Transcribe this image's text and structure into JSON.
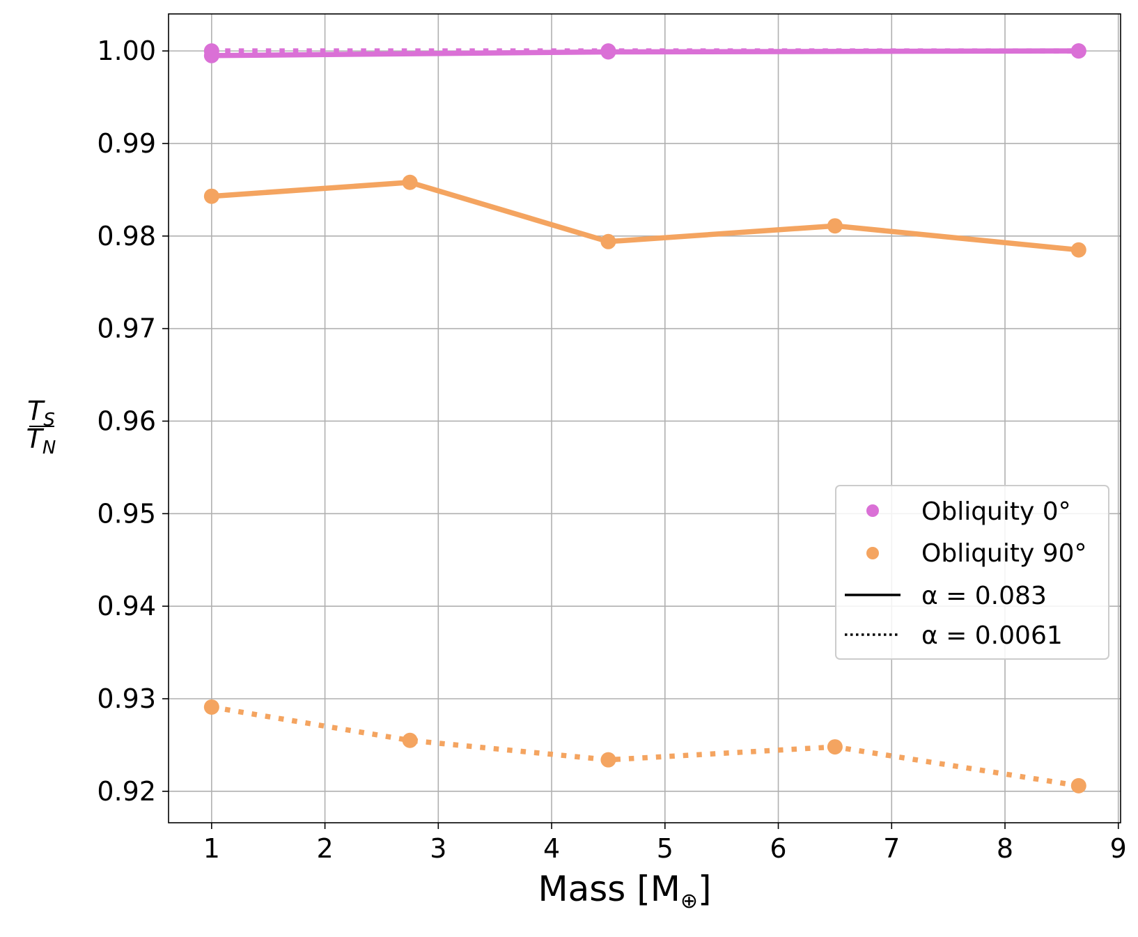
{
  "chart_data": {
    "type": "line",
    "xlabel": "Mass [M",
    "xlabel_symbol": "⊕",
    "xlabel_close": "]",
    "ylabel": {
      "num": "T",
      "num_sub": "S",
      "den": "T",
      "den_sub": "N"
    },
    "xlim": [
      0.62,
      9.02
    ],
    "ylim": [
      0.9166,
      1.004
    ],
    "xticks": [
      1,
      2,
      3,
      4,
      5,
      6,
      7,
      8,
      9
    ],
    "xtick_labels": [
      "1",
      "2",
      "3",
      "4",
      "5",
      "6",
      "7",
      "8",
      "9"
    ],
    "yticks": [
      0.92,
      0.93,
      0.94,
      0.95,
      0.96,
      0.97,
      0.98,
      0.99,
      1.0
    ],
    "ytick_labels": [
      "0.92",
      "0.93",
      "0.94",
      "0.95",
      "0.96",
      "0.97",
      "0.98",
      "0.99",
      "1.00"
    ],
    "grid": true,
    "legend_position": "center-right",
    "series": [
      {
        "name": "Obliquity 0° α = 0.0061",
        "color": "#DA70D6",
        "style": "dotted",
        "x": [
          1,
          4.5,
          8.65
        ],
        "y": [
          1.0,
          1.0,
          1.0
        ]
      },
      {
        "name": "Obliquity 0° α = 0.083",
        "color": "#DA70D6",
        "style": "solid",
        "x": [
          1,
          4.5,
          8.65
        ],
        "y": [
          0.9995,
          0.9999,
          1.0
        ]
      },
      {
        "name": "Obliquity 90° α = 0.083",
        "color": "#F4A460",
        "style": "solid",
        "x": [
          1,
          2.75,
          4.5,
          6.5,
          8.65
        ],
        "y": [
          0.9843,
          0.9858,
          0.9794,
          0.9811,
          0.9785
        ]
      },
      {
        "name": "Obliquity 90° α = 0.0061",
        "color": "#F4A460",
        "style": "dotted",
        "x": [
          1,
          2.75,
          4.5,
          6.5,
          8.65
        ],
        "y": [
          0.9291,
          0.9255,
          0.9234,
          0.9248,
          0.9206
        ]
      }
    ],
    "legend": [
      {
        "label": "Obliquity 0°",
        "kind": "marker",
        "color": "#DA70D6"
      },
      {
        "label": "Obliquity 90°",
        "kind": "marker",
        "color": "#F4A460"
      },
      {
        "label": "α = 0.083",
        "kind": "line",
        "style": "solid",
        "color": "#000000"
      },
      {
        "label": "α = 0.0061",
        "kind": "line",
        "style": "dotted",
        "color": "#000000"
      }
    ]
  }
}
